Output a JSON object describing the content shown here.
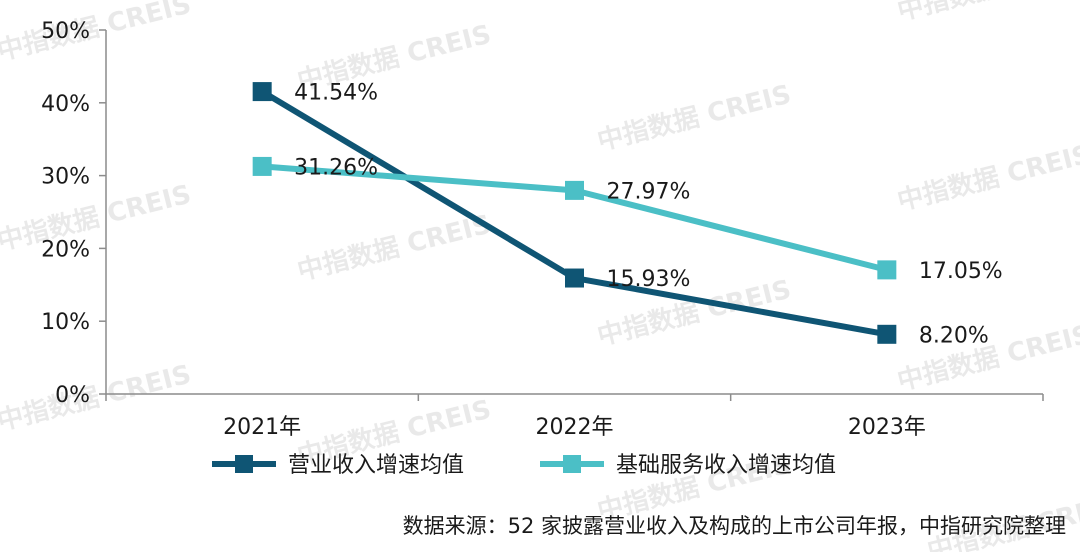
{
  "chart_data": {
    "type": "line",
    "categories": [
      "2021年",
      "2022年",
      "2023年"
    ],
    "series": [
      {
        "name": "营业收入增速均值",
        "values": [
          41.54,
          15.93,
          8.2
        ],
        "labels": [
          "41.54%",
          "15.93%",
          "8.20%"
        ],
        "color": "#0f5574"
      },
      {
        "name": "基础服务收入增速均值",
        "values": [
          31.26,
          27.97,
          17.05
        ],
        "labels": [
          "31.26%",
          "27.97%",
          "17.05%"
        ],
        "color": "#4bbfc6"
      }
    ],
    "ylim": [
      0,
      50
    ],
    "yticks": [
      0,
      10,
      20,
      30,
      40,
      50
    ],
    "ytick_labels": [
      "0%",
      "10%",
      "20%",
      "30%",
      "40%",
      "50%"
    ],
    "grid": false,
    "legend_position": "bottom"
  },
  "watermark": "中指数据 CREIS",
  "source_note": "数据来源：52 家披露营业收入及构成的上市公司年报，中指研究院整理"
}
